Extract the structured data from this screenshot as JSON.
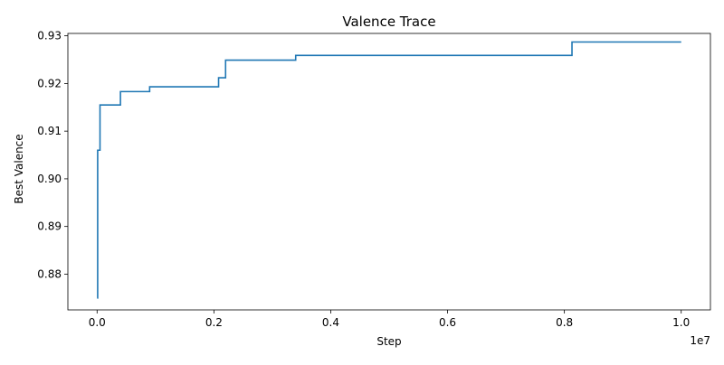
{
  "chart_data": {
    "type": "line",
    "title": "Valence Trace",
    "xlabel": "Step",
    "ylabel": "Best Valence",
    "x_offset_label": "1e7",
    "x_scale": 10000000,
    "xlim": [
      -500000,
      10500000
    ],
    "ylim": [
      0.8725,
      0.9305
    ],
    "x_ticks": [
      0,
      2000000,
      4000000,
      6000000,
      8000000,
      10000000
    ],
    "x_tick_labels": [
      "0.0",
      "0.2",
      "0.4",
      "0.6",
      "0.8",
      "1.0"
    ],
    "y_ticks": [
      0.88,
      0.89,
      0.9,
      0.91,
      0.92,
      0.93
    ],
    "y_tick_labels": [
      "0.88",
      "0.89",
      "0.90",
      "0.91",
      "0.92",
      "0.93"
    ],
    "grid": false,
    "line_color": "#1f77b4",
    "series": [
      {
        "step": "post",
        "x": [
          0,
          10000,
          50000,
          400000,
          900000,
          2080000,
          2200000,
          3400000,
          8130000,
          10000000
        ],
        "y": [
          0.875,
          0.906,
          0.9155,
          0.9183,
          0.9193,
          0.9212,
          0.9249,
          0.9259,
          0.9287,
          0.9287
        ]
      }
    ]
  }
}
